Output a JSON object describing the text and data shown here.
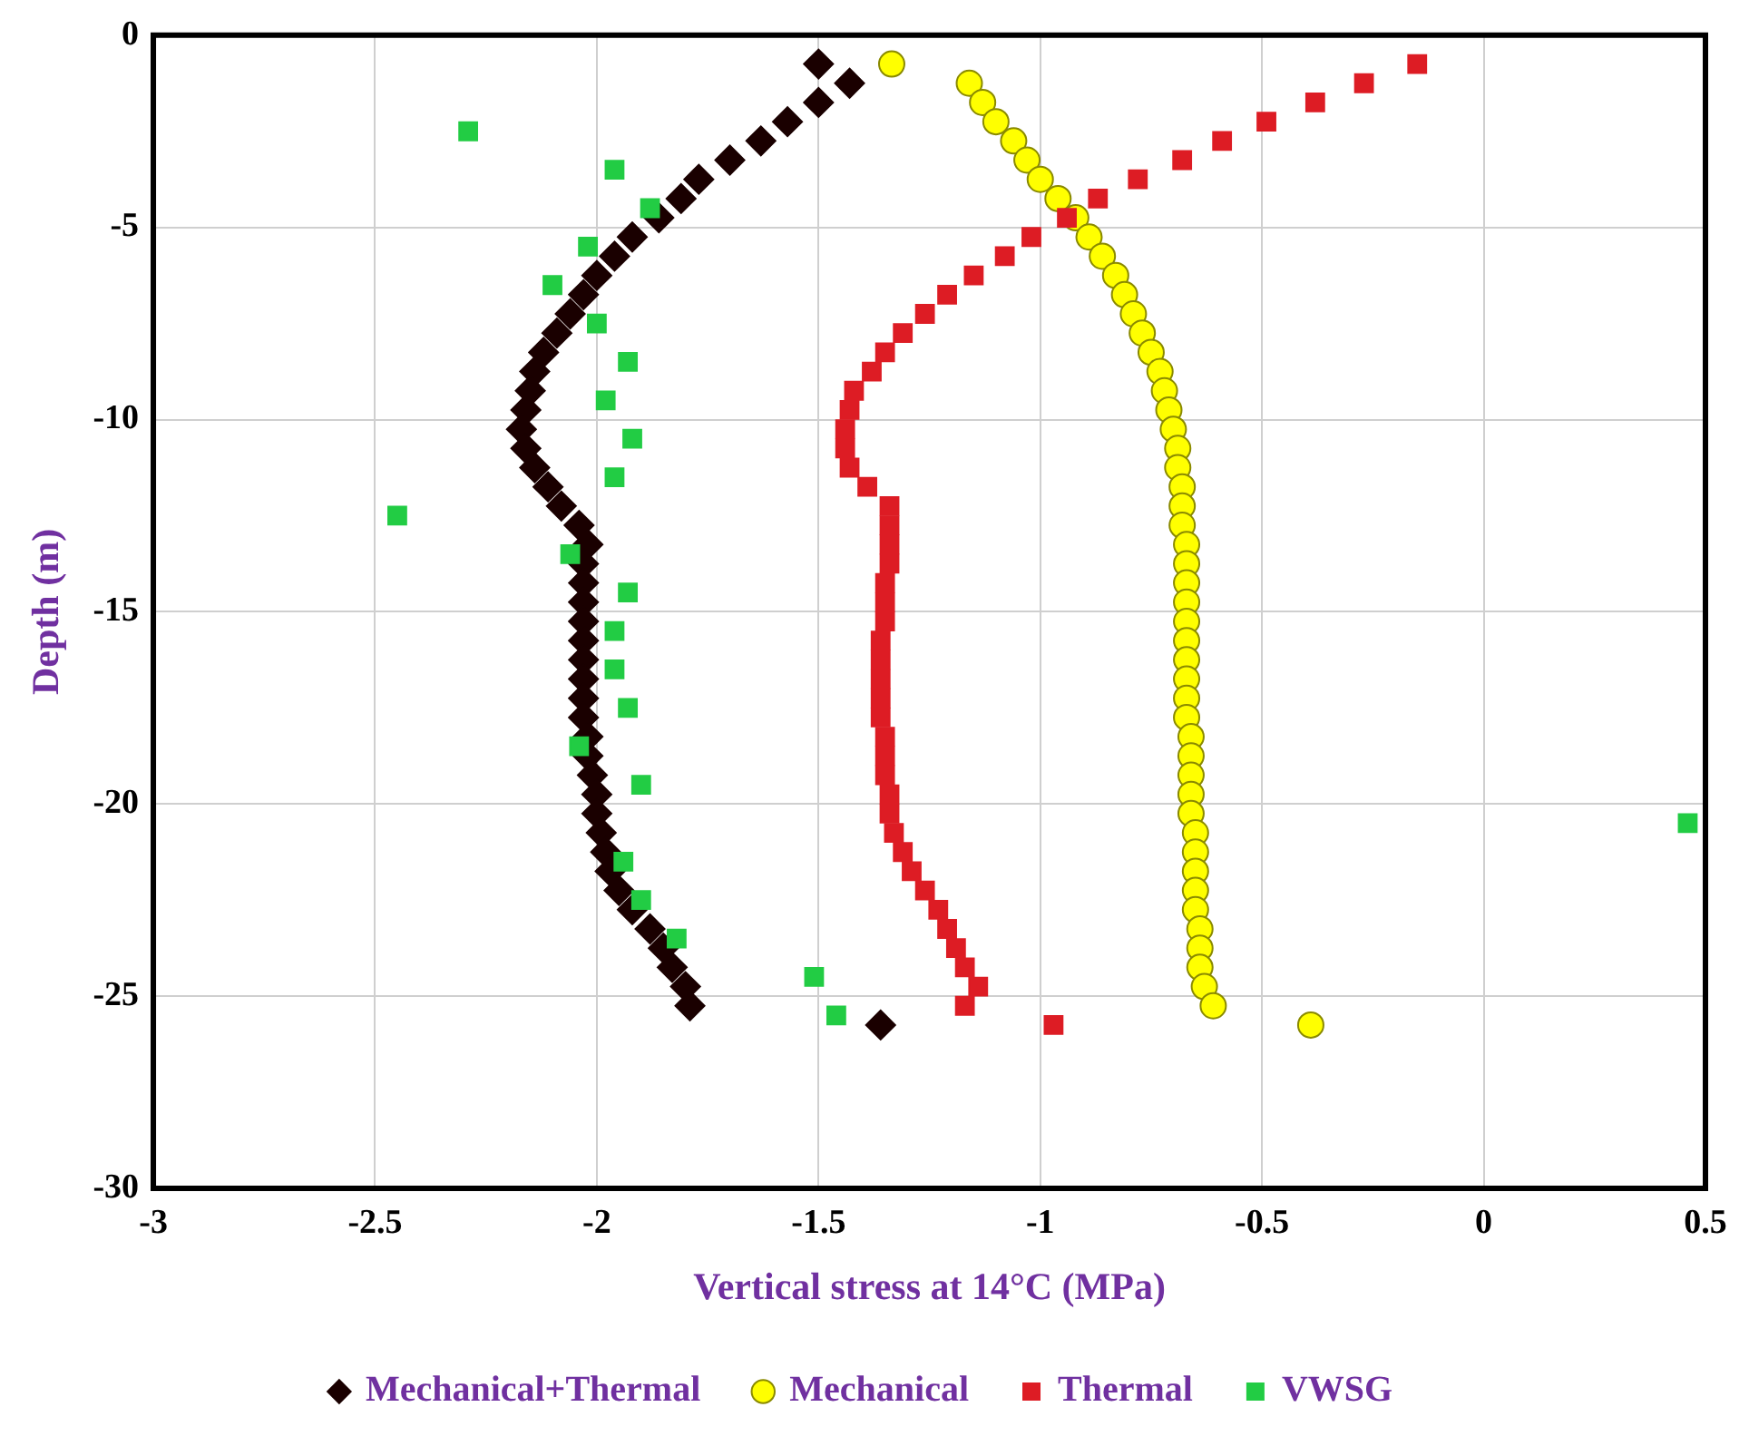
{
  "chart_data": {
    "type": "scatter",
    "xlabel": "Vertical stress at 14°C (MPa)",
    "ylabel": "Depth (m)",
    "xlim": [
      -3,
      0.5
    ],
    "xticks": [
      -3,
      -2.5,
      -2,
      -1.5,
      -1,
      -0.5,
      0,
      0.5
    ],
    "ylim": [
      -30,
      0
    ],
    "yticks": [
      -30,
      -25,
      -20,
      -15,
      -10,
      -5,
      0
    ],
    "grid": true,
    "legend": "bottom",
    "series": [
      {
        "name": "Mechanical+Thermal",
        "color": "#1a0000",
        "marker": "diamond",
        "x": [
          -1.5,
          -1.43,
          -1.5,
          -1.57,
          -1.63,
          -1.7,
          -1.77,
          -1.81,
          -1.86,
          -1.92,
          -1.96,
          -2.0,
          -2.03,
          -2.06,
          -2.09,
          -2.12,
          -2.14,
          -2.15,
          -2.16,
          -2.17,
          -2.16,
          -2.14,
          -2.11,
          -2.08,
          -2.04,
          -2.02,
          -2.03,
          -2.03,
          -2.03,
          -2.03,
          -2.03,
          -2.03,
          -2.03,
          -2.03,
          -2.03,
          -2.02,
          -2.02,
          -2.01,
          -2.0,
          -2.0,
          -1.99,
          -1.98,
          -1.97,
          -1.95,
          -1.92,
          -1.88,
          -1.85,
          -1.83,
          -1.8,
          -1.79,
          -1.36
        ],
        "values": [
          -0.75,
          -1.25,
          -1.75,
          -2.25,
          -2.75,
          -3.25,
          -3.75,
          -4.25,
          -4.75,
          -5.25,
          -5.75,
          -6.25,
          -6.75,
          -7.25,
          -7.75,
          -8.25,
          -8.75,
          -9.25,
          -9.75,
          -10.25,
          -10.75,
          -11.25,
          -11.75,
          -12.25,
          -12.75,
          -13.25,
          -13.75,
          -14.25,
          -14.75,
          -15.25,
          -15.75,
          -16.25,
          -16.75,
          -17.25,
          -17.75,
          -18.25,
          -18.75,
          -19.25,
          -19.75,
          -20.25,
          -20.75,
          -21.25,
          -21.75,
          -22.25,
          -22.75,
          -23.25,
          -23.75,
          -24.25,
          -24.75,
          -25.25,
          -25.75
        ]
      },
      {
        "name": "Mechanical",
        "color": "#ffff00",
        "marker": "circle",
        "x": [
          -1.335,
          -1.16,
          -1.13,
          -1.1,
          -1.06,
          -1.03,
          -1.0,
          -0.96,
          -0.92,
          -0.89,
          -0.86,
          -0.83,
          -0.81,
          -0.79,
          -0.77,
          -0.75,
          -0.73,
          -0.72,
          -0.71,
          -0.7,
          -0.69,
          -0.69,
          -0.68,
          -0.68,
          -0.68,
          -0.67,
          -0.67,
          -0.67,
          -0.67,
          -0.67,
          -0.67,
          -0.67,
          -0.67,
          -0.67,
          -0.67,
          -0.66,
          -0.66,
          -0.66,
          -0.66,
          -0.66,
          -0.65,
          -0.65,
          -0.65,
          -0.65,
          -0.65,
          -0.64,
          -0.64,
          -0.64,
          -0.63,
          -0.61,
          -0.39
        ],
        "values": [
          -0.75,
          -1.25,
          -1.75,
          -2.25,
          -2.75,
          -3.25,
          -3.75,
          -4.25,
          -4.75,
          -5.25,
          -5.75,
          -6.25,
          -6.75,
          -7.25,
          -7.75,
          -8.25,
          -8.75,
          -9.25,
          -9.75,
          -10.25,
          -10.75,
          -11.25,
          -11.75,
          -12.25,
          -12.75,
          -13.25,
          -13.75,
          -14.25,
          -14.75,
          -15.25,
          -15.75,
          -16.25,
          -16.75,
          -17.25,
          -17.75,
          -18.25,
          -18.75,
          -19.25,
          -19.75,
          -20.25,
          -20.75,
          -21.25,
          -21.75,
          -22.25,
          -22.75,
          -23.25,
          -23.75,
          -24.25,
          -24.75,
          -25.25,
          -25.75
        ]
      },
      {
        "name": "Thermal",
        "color": "#dd1c24",
        "marker": "square",
        "x": [
          -0.15,
          -0.27,
          -0.38,
          -0.49,
          -0.59,
          -0.68,
          -0.78,
          -0.87,
          -0.94,
          -1.02,
          -1.08,
          -1.15,
          -1.21,
          -1.26,
          -1.31,
          -1.35,
          -1.38,
          -1.42,
          -1.43,
          -1.44,
          -1.44,
          -1.43,
          -1.39,
          -1.34,
          -1.34,
          -1.34,
          -1.34,
          -1.35,
          -1.35,
          -1.35,
          -1.36,
          -1.36,
          -1.36,
          -1.36,
          -1.36,
          -1.35,
          -1.35,
          -1.35,
          -1.34,
          -1.34,
          -1.33,
          -1.31,
          -1.29,
          -1.26,
          -1.23,
          -1.21,
          -1.19,
          -1.17,
          -1.14,
          -1.17,
          -0.97
        ],
        "values": [
          -0.75,
          -1.25,
          -1.75,
          -2.25,
          -2.75,
          -3.25,
          -3.75,
          -4.25,
          -4.75,
          -5.25,
          -5.75,
          -6.25,
          -6.75,
          -7.25,
          -7.75,
          -8.25,
          -8.75,
          -9.25,
          -9.75,
          -10.25,
          -10.75,
          -11.25,
          -11.75,
          -12.25,
          -12.75,
          -13.25,
          -13.75,
          -14.25,
          -14.75,
          -15.25,
          -15.75,
          -16.25,
          -16.75,
          -17.25,
          -17.75,
          -18.25,
          -18.75,
          -19.25,
          -19.75,
          -20.25,
          -20.75,
          -21.25,
          -21.75,
          -22.25,
          -22.75,
          -23.25,
          -23.75,
          -24.25,
          -24.75,
          -25.25,
          -25.75
        ]
      },
      {
        "name": "VWSG",
        "color": "#22cc44",
        "marker": "square",
        "x": [
          -2.29,
          -1.96,
          -1.88,
          -2.02,
          -2.1,
          -2.0,
          -1.93,
          -1.98,
          -1.92,
          -1.96,
          -2.45,
          -2.06,
          -1.93,
          -1.96,
          -1.96,
          -1.93,
          -2.04,
          -1.9,
          0.46,
          -1.94,
          -1.9,
          -1.82,
          -1.51,
          -1.46
        ],
        "values": [
          -2.5,
          -3.5,
          -4.5,
          -5.5,
          -6.5,
          -7.5,
          -8.5,
          -9.5,
          -10.5,
          -11.5,
          -12.5,
          -13.5,
          -14.5,
          -15.5,
          -16.5,
          -17.5,
          -18.5,
          -19.5,
          -20.5,
          -21.5,
          -22.5,
          -23.5,
          -24.5,
          -25.5
        ]
      }
    ]
  }
}
